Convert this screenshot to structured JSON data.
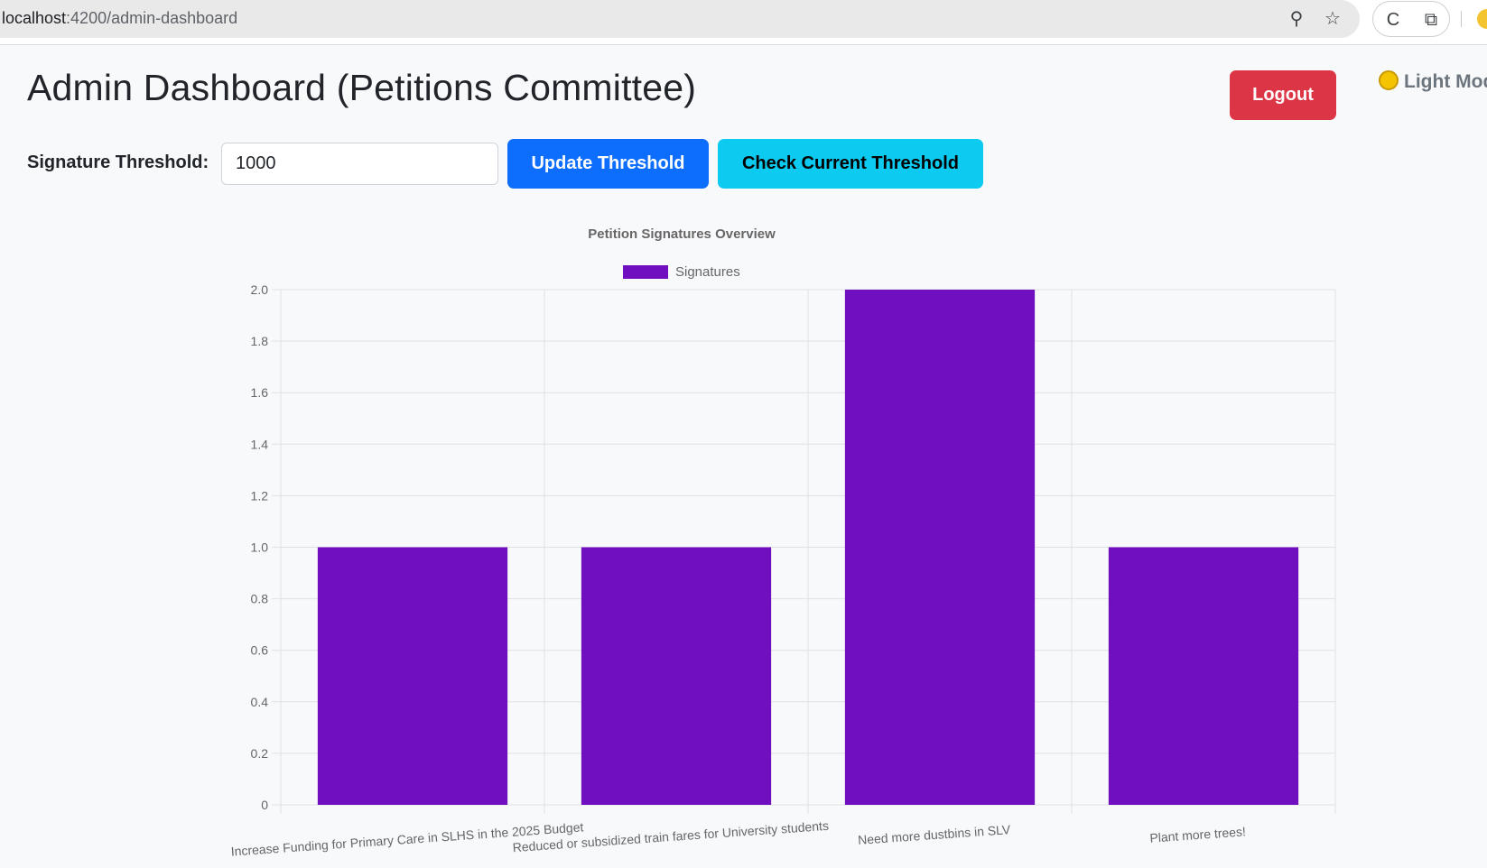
{
  "browser": {
    "url_host": "localhost",
    "url_path": ":4200/admin-dashboard",
    "icons": [
      "key-icon",
      "star-icon",
      "extension-c-icon",
      "puzzle-icon"
    ]
  },
  "header": {
    "title": "Admin Dashboard (Petitions Committee)",
    "logout_label": "Logout",
    "theme_toggle_label": "Light Mode"
  },
  "threshold": {
    "label": "Signature Threshold:",
    "value": "1000",
    "update_label": "Update Threshold",
    "check_label": "Check Current Threshold"
  },
  "colors": {
    "bar": "#6f0fbf",
    "logout": "#dc3545",
    "update": "#0d6efd",
    "check": "#0dcaf0"
  },
  "chart_data": {
    "type": "bar",
    "title": "Petition Signatures Overview",
    "legend_position": "top",
    "categories": [
      "Increase Funding for Primary Care in SLHS in the 2025 Budget",
      "Reduced or subsidized train fares for University students",
      "Need more dustbins in SLV",
      "Plant more trees!"
    ],
    "series": [
      {
        "name": "Signatures",
        "values": [
          1,
          1,
          2,
          1
        ]
      }
    ],
    "ylim": [
      0,
      2
    ],
    "yticks": [
      "0",
      "0.2",
      "0.4",
      "0.6",
      "0.8",
      "1.0",
      "1.2",
      "1.4",
      "1.6",
      "1.8",
      "2.0"
    ],
    "xlabel": "",
    "ylabel": "",
    "grid": true
  }
}
